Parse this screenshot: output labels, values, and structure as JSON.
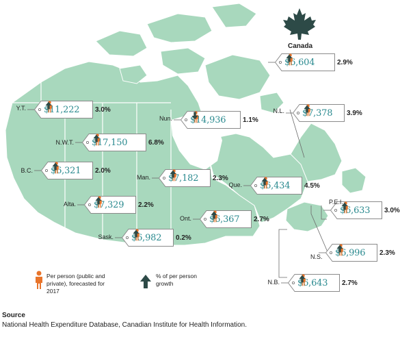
{
  "country": {
    "name": "Canada",
    "amount": "$6,604",
    "growth": "2.9%",
    "direction": "up"
  },
  "regions": [
    {
      "key": "yt",
      "abbr": "Y.T.",
      "amount": "$11,222",
      "growth": "3.0%",
      "direction": "up"
    },
    {
      "key": "nwt",
      "abbr": "N.W.T.",
      "amount": "$17,150",
      "growth": "6.8%",
      "direction": "up"
    },
    {
      "key": "nun",
      "abbr": "Nun.",
      "amount": "$14,936",
      "growth": "1.1%",
      "direction": "down"
    },
    {
      "key": "bc",
      "abbr": "B.C.",
      "amount": "$6,321",
      "growth": "2.0%",
      "direction": "up"
    },
    {
      "key": "alta",
      "abbr": "Alta.",
      "amount": "$7,329",
      "growth": "2.2%",
      "direction": "up"
    },
    {
      "key": "sask",
      "abbr": "Sask.",
      "amount": "$6,982",
      "growth": "0.2%",
      "direction": "up"
    },
    {
      "key": "man",
      "abbr": "Man.",
      "amount": "$7,182",
      "growth": "2.3%",
      "direction": "up"
    },
    {
      "key": "ont",
      "abbr": "Ont.",
      "amount": "$6,367",
      "growth": "2.7%",
      "direction": "up"
    },
    {
      "key": "que",
      "abbr": "Que.",
      "amount": "$6,434",
      "growth": "4.5%",
      "direction": "up"
    },
    {
      "key": "nl",
      "abbr": "N.L.",
      "amount": "$7,378",
      "growth": "3.9%",
      "direction": "up"
    },
    {
      "key": "pei",
      "abbr": "P.E.I.",
      "amount": "$6,633",
      "growth": "3.0%",
      "direction": "up"
    },
    {
      "key": "ns",
      "abbr": "N.S.",
      "amount": "$6,996",
      "growth": "2.3%",
      "direction": "up"
    },
    {
      "key": "nb",
      "abbr": "N.B.",
      "amount": "$6,643",
      "growth": "2.7%",
      "direction": "up"
    }
  ],
  "legend": {
    "person_label": "Per person (public and private), forecasted for 2017",
    "growth_label": "% of per person growth"
  },
  "source": {
    "title": "Source",
    "text": "National Health Expenditure Database, Canadian Institute for Health Information."
  },
  "colors": {
    "land": "#a8d8bd",
    "teal_text": "#2a8a8f",
    "person": "#e8742a",
    "arrow": "#2d4a47",
    "leaf": "#2d4a47"
  },
  "icons": {
    "person": "person-icon",
    "arrow_up": "arrow-up-icon",
    "arrow_down": "arrow-down-icon",
    "leaf": "maple-leaf-icon"
  }
}
